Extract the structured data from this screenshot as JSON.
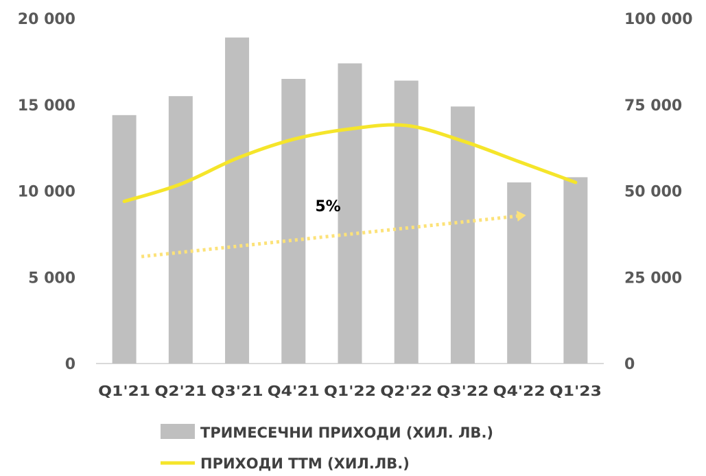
{
  "chart_data": {
    "type": "bar",
    "categories": [
      "Q1'21",
      "Q2'21",
      "Q3'21",
      "Q4'21",
      "Q1'22",
      "Q2'22",
      "Q3'22",
      "Q4'22",
      "Q1'23"
    ],
    "series": [
      {
        "name": "ТРИМЕСЕЧНИ ПРИХОДИ (ХИЛ. ЛВ.)",
        "type": "bar",
        "axis": "left",
        "color": "#bfbfbf",
        "values": [
          14400,
          15500,
          18900,
          16500,
          17400,
          16400,
          14900,
          10500,
          10800
        ]
      },
      {
        "name": "ПРИХОДИ ТТМ (ХИЛ.ЛВ.)",
        "type": "line",
        "axis": "right",
        "color": "#f5e52a",
        "values": [
          47000,
          52000,
          59500,
          65000,
          68000,
          69000,
          64500,
          58500,
          52500
        ]
      }
    ],
    "trendline": {
      "style": "dotted-arrow",
      "color": "#fce279",
      "axis": "right",
      "from_category": "Q1'21",
      "to_category": "Q4'22",
      "start_value": 31000,
      "end_value": 43000,
      "label": "5%"
    },
    "y_left": {
      "min": 0,
      "max": 20000,
      "ticks": [
        "0",
        "5 000",
        "10 000",
        "15 000",
        "20 000"
      ]
    },
    "y_right": {
      "min": 0,
      "max": 100000,
      "ticks": [
        "0",
        "25 000",
        "50 000",
        "75 000",
        "100 000"
      ]
    },
    "grid": false,
    "legend_position": "bottom",
    "title": "",
    "xlabel": "",
    "ylabel": ""
  }
}
